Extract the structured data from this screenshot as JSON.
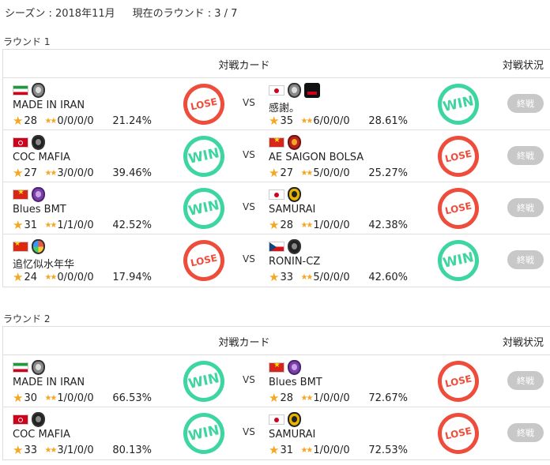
{
  "header": {
    "season": "シーズン : 2018年11月",
    "current_round": "現在のラウンド : 3 / 7"
  },
  "columns": {
    "card": "対戦カード",
    "status": "対戦状況"
  },
  "colors": {
    "win": "#3ed6a0",
    "lose": "#ef4d3c",
    "star": "#f5a623",
    "status_button": "#c8c8c8"
  },
  "rounds": [
    {
      "title": "ラウンド 1",
      "matches": [
        {
          "left": {
            "name": "MADE IN IRAN",
            "flag": "iran-flag",
            "badge": "gray",
            "stars": "28",
            "attacks": "0/0/0/0",
            "pct": "21.24%",
            "result": "LOSE"
          },
          "right": {
            "name": "感謝。",
            "flag": "japan-flag",
            "badge": "gray",
            "stars": "35",
            "attacks": "6/0/0/0",
            "pct": "28.61%",
            "result": "WIN"
          },
          "vs": "VS",
          "status": "終戦"
        },
        {
          "left": {
            "name": "COC MAFIA",
            "flag": "isle-of-man-flag",
            "badge": "black",
            "stars": "27",
            "attacks": "3/0/0/0",
            "pct": "39.46%",
            "result": "WIN"
          },
          "right": {
            "name": "AE SAIGON BOLSA",
            "flag": "vietnam-flag",
            "badge": "red",
            "stars": "27",
            "attacks": "5/0/0/0",
            "pct": "25.27%",
            "result": "LOSE"
          },
          "vs": "VS",
          "status": "終戦"
        },
        {
          "left": {
            "name": "Blues BMT",
            "flag": "vietnam-flag",
            "badge": "purple",
            "stars": "31",
            "attacks": "1/1/0/0",
            "pct": "42.52%",
            "result": "WIN"
          },
          "right": {
            "name": "SAMURAI",
            "flag": "japan-flag",
            "badge": "yellow",
            "stars": "28",
            "attacks": "1/0/0/0",
            "pct": "42.38%",
            "result": "LOSE"
          },
          "vs": "VS",
          "status": "終戦"
        },
        {
          "left": {
            "name": "追忆似水年华",
            "flag": "china-flag",
            "badge": "multi",
            "stars": "24",
            "attacks": "0/0/0/0",
            "pct": "17.94%",
            "result": "LOSE"
          },
          "right": {
            "name": "RONIN-CZ",
            "flag": "czech-flag",
            "badge": "black",
            "stars": "33",
            "attacks": "5/0/0/0",
            "pct": "42.60%",
            "result": "WIN"
          },
          "vs": "VS",
          "status": "終戦"
        }
      ]
    },
    {
      "title": "ラウンド 2",
      "matches": [
        {
          "left": {
            "name": "MADE IN IRAN",
            "flag": "iran-flag",
            "badge": "gray",
            "stars": "30",
            "attacks": "1/0/0/0",
            "pct": "66.53%",
            "result": "WIN"
          },
          "right": {
            "name": "Blues BMT",
            "flag": "vietnam-flag",
            "badge": "purple",
            "stars": "28",
            "attacks": "1/0/0/0",
            "pct": "72.67%",
            "result": "LOSE"
          },
          "vs": "VS",
          "status": "終戦"
        },
        {
          "left": {
            "name": "COC MAFIA",
            "flag": "isle-of-man-flag",
            "badge": "black",
            "stars": "33",
            "attacks": "3/1/0/0",
            "pct": "80.13%",
            "result": "WIN"
          },
          "right": {
            "name": "SAMURAI",
            "flag": "japan-flag",
            "badge": "yellow",
            "stars": "31",
            "attacks": "1/0/0/0",
            "pct": "72.53%",
            "result": "LOSE"
          },
          "vs": "VS",
          "status": "終戦"
        }
      ]
    }
  ]
}
